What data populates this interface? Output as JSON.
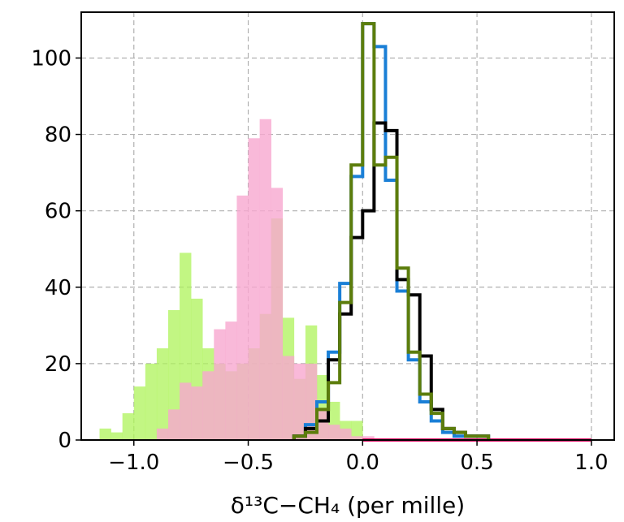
{
  "chart_data": {
    "type": "histogram",
    "xlabel": "δ¹³C−CH₄ (per mille)",
    "ylabel": "",
    "xlim": [
      -1.23,
      1.1
    ],
    "ylim": [
      0,
      112
    ],
    "xticks": [
      -1.0,
      -0.5,
      0.0,
      0.5,
      1.0
    ],
    "xtick_labels": [
      "−1.0",
      "−0.5",
      "0.0",
      "0.5",
      "1.0"
    ],
    "yticks": [
      0,
      20,
      40,
      60,
      80,
      100
    ],
    "ytick_labels": [
      "0",
      "20",
      "40",
      "60",
      "80",
      "100"
    ],
    "grid": true,
    "legend": "none",
    "series": [
      {
        "style": "filled",
        "color": "#aef359",
        "opacity": 0.75,
        "edges": [
          -1.15,
          -1.1,
          -1.05,
          -1.0,
          -0.95,
          -0.9,
          -0.85,
          -0.8,
          -0.75,
          -0.7,
          -0.65,
          -0.6,
          -0.55,
          -0.5,
          -0.45,
          -0.4,
          -0.35,
          -0.3,
          -0.25,
          -0.2,
          -0.15,
          -0.1,
          -0.05,
          0.0,
          0.05
        ],
        "counts": [
          3,
          2,
          7,
          14,
          20,
          24,
          34,
          49,
          37,
          24,
          20,
          18,
          20,
          24,
          33,
          58,
          32,
          16,
          30,
          17,
          10,
          5,
          5,
          0
        ]
      },
      {
        "style": "filled",
        "color": "#f8a8d0",
        "opacity": 0.8,
        "edges": [
          -0.9,
          -0.85,
          -0.8,
          -0.75,
          -0.7,
          -0.65,
          -0.6,
          -0.55,
          -0.5,
          -0.45,
          -0.4,
          -0.35,
          -0.3,
          -0.25,
          -0.2,
          -0.15,
          -0.1,
          -0.05,
          0.0,
          0.05
        ],
        "counts": [
          3,
          8,
          15,
          14,
          18,
          29,
          31,
          64,
          79,
          84,
          66,
          22,
          20,
          20,
          8,
          4,
          3,
          1,
          1
        ]
      },
      {
        "style": "step",
        "color": "#e0176c",
        "edges": [
          0.0,
          0.3,
          0.6,
          0.8,
          1.0
        ],
        "counts": [
          0,
          0,
          0,
          0
        ]
      },
      {
        "style": "step",
        "color": "#1a7fd6",
        "edges": [
          -0.3,
          -0.25,
          -0.2,
          -0.15,
          -0.1,
          -0.05,
          0.0,
          0.05,
          0.1,
          0.15,
          0.2,
          0.25,
          0.3,
          0.35,
          0.4,
          0.45,
          0.5,
          0.55
        ],
        "counts": [
          1,
          4,
          10,
          23,
          41,
          69,
          109,
          103,
          68,
          39,
          21,
          10,
          5,
          2,
          1,
          1,
          1
        ]
      },
      {
        "style": "step",
        "color": "#000000",
        "edges": [
          -0.3,
          -0.25,
          -0.2,
          -0.15,
          -0.1,
          -0.05,
          0.0,
          0.05,
          0.1,
          0.15,
          0.2,
          0.25,
          0.3,
          0.35,
          0.4,
          0.45,
          0.5,
          0.55
        ],
        "counts": [
          1,
          3,
          5,
          21,
          33,
          53,
          60,
          83,
          81,
          42,
          38,
          22,
          8,
          3,
          2,
          1,
          1
        ]
      },
      {
        "style": "step",
        "color": "#5c7d0c",
        "edges": [
          -0.3,
          -0.25,
          -0.2,
          -0.15,
          -0.1,
          -0.05,
          0.0,
          0.05,
          0.1,
          0.15,
          0.2,
          0.25,
          0.3,
          0.35,
          0.4,
          0.45,
          0.5,
          0.55
        ],
        "counts": [
          1,
          2,
          8,
          15,
          36,
          72,
          109,
          72,
          74,
          45,
          23,
          12,
          7,
          3,
          2,
          1,
          1
        ]
      }
    ]
  }
}
